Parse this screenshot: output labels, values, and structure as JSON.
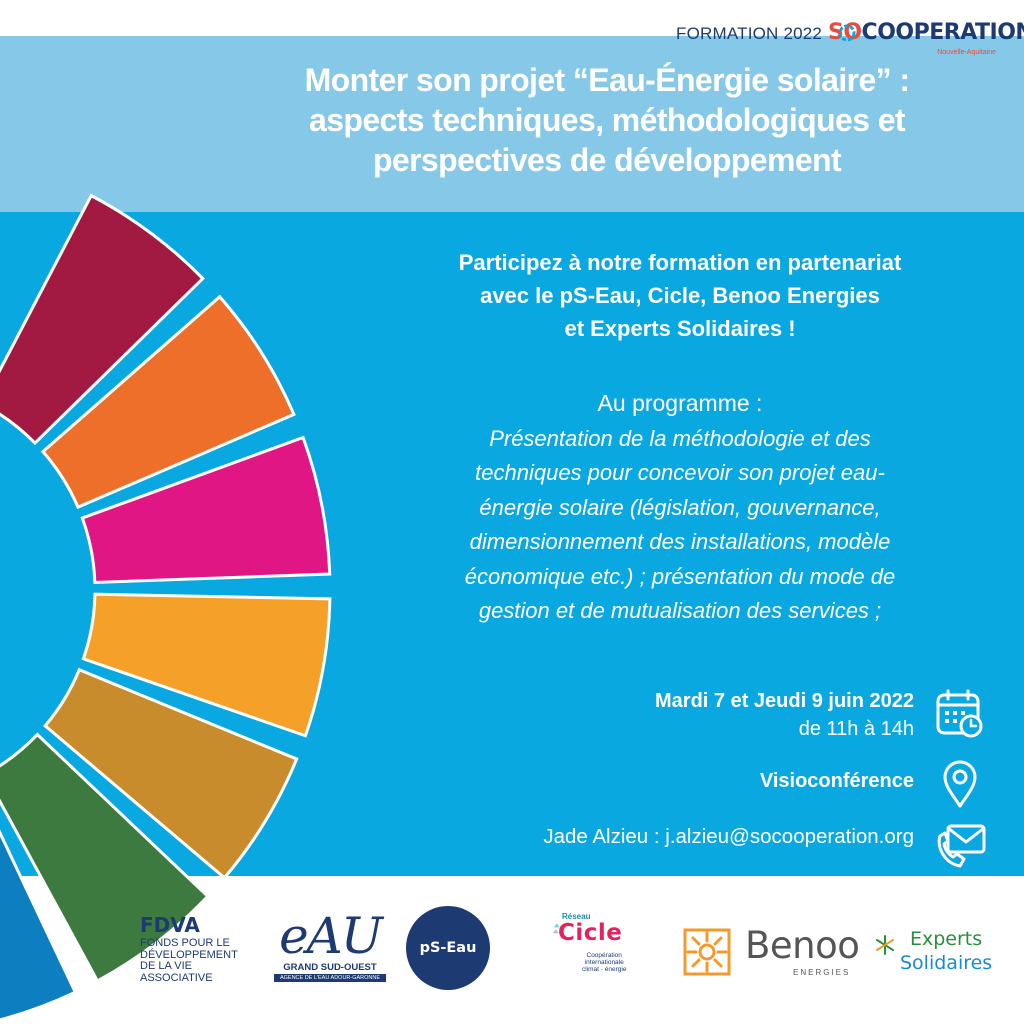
{
  "header": {
    "formation_label": "FORMATION 2022",
    "brand_prefix": "SO",
    "brand_suffix": "COOPERATION",
    "brand_region": "Nouvelle-Aquitaine",
    "title_lines": [
      "Monter son projet “Eau-Énergie solaire” :",
      "aspects techniques, méthodologiques et",
      "perspectives de développement"
    ]
  },
  "body": {
    "intro_lines": [
      "Participez à notre formation en partenariat",
      "avec le pS-Eau, Cicle, Benoo Energies",
      "et Experts Solidaires !"
    ],
    "program_heading": "Au programme :",
    "program_lines": [
      "Présentation de la méthodologie et des",
      "techniques pour concevoir son projet eau-",
      "énergie solaire (législation, gouvernance,",
      "dimensionnement des installations, modèle",
      "économique etc.) ; présentation du mode de",
      "gestion et de mutualisation des services ;"
    ]
  },
  "info": {
    "date": "Mardi 7 et Jeudi 9 juin 2022",
    "time": "de 11h à 14h",
    "place": "Visioconférence",
    "contact": "Jade Alzieu : j.alzieu@socooperation.org",
    "icons": [
      "calendar-clock-icon",
      "location-pin-icon",
      "phone-mail-icon"
    ]
  },
  "partners": {
    "fdva_title": "FDVA",
    "fdva_lines": [
      "FONDS POUR LE",
      "DÉVELOPPEMENT",
      "DE LA VIE",
      "ASSOCIATIVE"
    ],
    "eau_word": "eAU",
    "eau_sub": "GRAND SUD-OUEST",
    "eau_bar": "AGENCE DE L'EAU ADOUR-GARONNE",
    "pseau": "pS-Eau",
    "cicle_small": "Réseau",
    "cicle_word": "Cicle",
    "cicle_lines": [
      "Coopération",
      "internationale",
      "climat · énergie"
    ],
    "benoo_word": "Benoo",
    "benoo_sub": "ENERGIES",
    "experts_word1": "Experts",
    "experts_word2": "Solidaires"
  },
  "colors": {
    "header_band": "#86c8e8",
    "main_band": "#0aa8e0",
    "navy": "#1d3a73",
    "wheel_segments": [
      "#e5243b",
      "#dda63a",
      "#4c9f38",
      "#c5192d",
      "#ff3a21",
      "#26bde2",
      "#fcc30b",
      "#a21942",
      "#fd6925",
      "#dd1367",
      "#fd9d24",
      "#bf8b2e",
      "#3f7e44",
      "#0a97d9",
      "#56c02b",
      "#00689d",
      "#19486a"
    ],
    "visible_wheel_order": [
      "#a21942",
      "#ee6f2a",
      "#e01685",
      "#f5a028",
      "#c98c2d",
      "#3d7a3f",
      "#0d7ec0",
      "#5ab832"
    ]
  }
}
